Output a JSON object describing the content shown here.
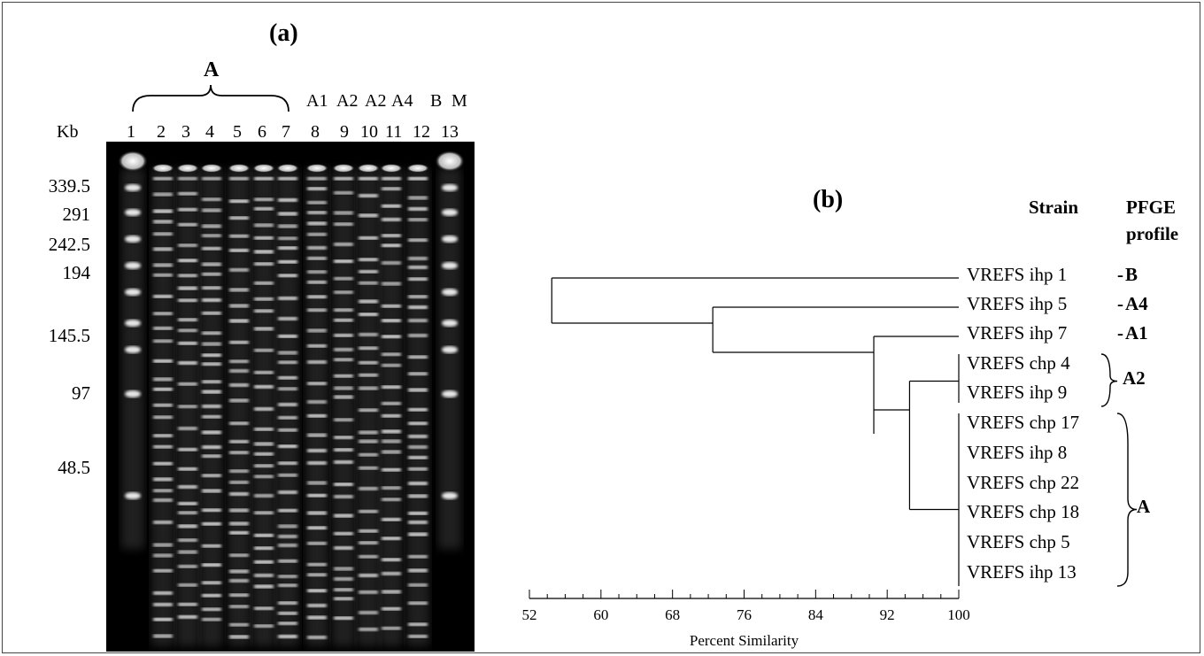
{
  "panel_a": {
    "label": "(a)",
    "group_label": "A",
    "kb_label": "Kb",
    "top_labels": [
      "A1",
      "A2",
      "A2",
      "A4",
      "B",
      "M"
    ],
    "lane_numbers": [
      "1",
      "2",
      "3",
      "4",
      "5",
      "6",
      "7",
      "8",
      "9",
      "10",
      "11",
      "12",
      "13"
    ],
    "size_markers": [
      "339.5",
      "291",
      "242.5",
      "194",
      "145.5",
      "97",
      "48.5"
    ]
  },
  "panel_b": {
    "label": "(b)",
    "strain_header": "Strain",
    "profile_header": [
      "PFGE",
      "profile"
    ],
    "strains": [
      "VREFS ihp 1",
      "VREFS ihp 5",
      "VREFS ihp 7",
      "VREFS chp 4",
      "VREFS ihp 9",
      "VREFS chp 17",
      "VREFS ihp 8",
      "VREFS chp 22",
      "VREFS chp 18",
      "VREFS chp 5",
      "VREFS ihp 13"
    ],
    "profiles": [
      {
        "text": "B",
        "marker": "-"
      },
      {
        "text": "A4",
        "marker": "-"
      },
      {
        "text": "A1",
        "marker": "-"
      },
      {
        "text": "A2",
        "marker": "brace"
      },
      {
        "text": "A",
        "marker": "brace"
      }
    ],
    "axis": {
      "ticks": [
        "52",
        "60",
        "68",
        "76",
        "84",
        "92",
        "100"
      ],
      "label": "Percent Similarity",
      "range": [
        52,
        100
      ]
    },
    "tree": {
      "merges": [
        {
          "similarity": 94.5,
          "joins": "chp4/ihp9 cluster with chp17..ihp13 cluster"
        },
        {
          "similarity": 90.5,
          "joins": "ihp 7 with A/A2 cluster"
        },
        {
          "similarity": 72.5,
          "joins": "ihp 5 with rest"
        },
        {
          "similarity": 54.5,
          "joins": "ihp 1 with rest"
        }
      ]
    }
  }
}
